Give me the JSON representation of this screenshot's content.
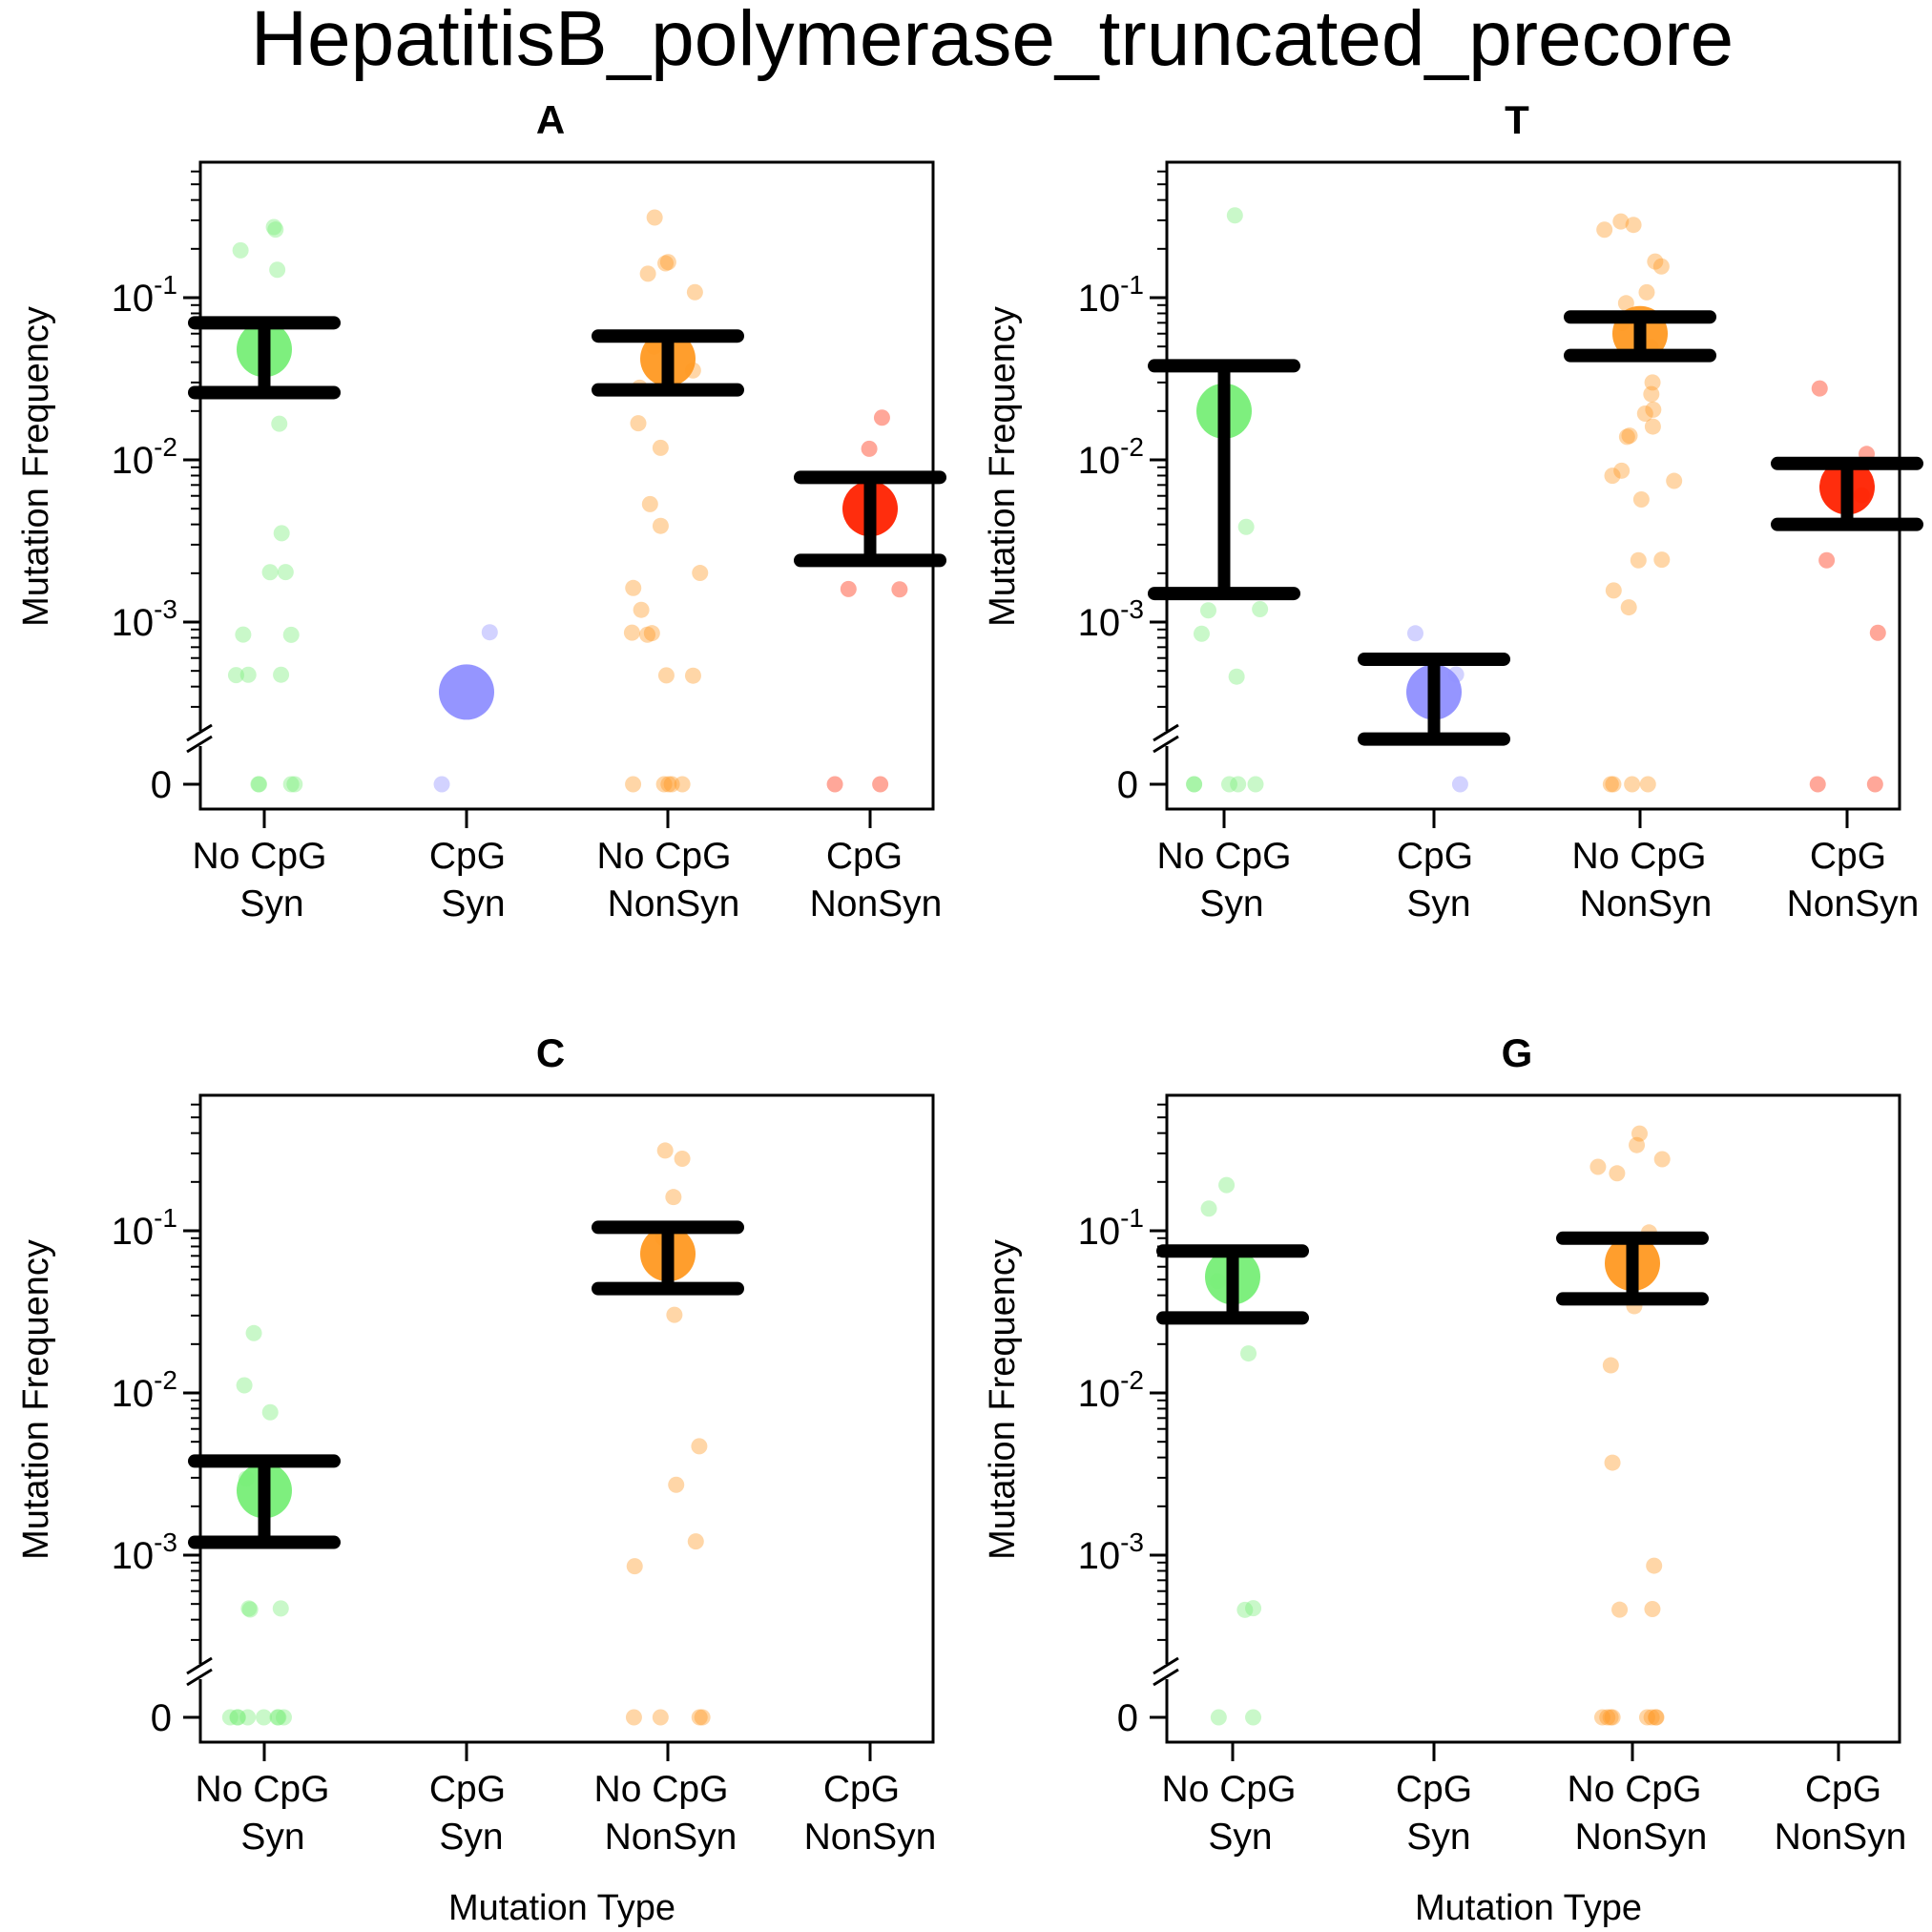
{
  "chart_data": {
    "type": "scatter",
    "title": "HepatitisB_polymerase_truncated_precore",
    "ylabel": "Mutation Frequency",
    "xlabel": "Mutation Type",
    "yscale": "log",
    "yticks": [
      {
        "value": 0.1,
        "label": "10",
        "exp": "-1"
      },
      {
        "value": 0.01,
        "label": "10",
        "exp": "-2"
      },
      {
        "value": 0.001,
        "label": "10",
        "exp": "-3"
      },
      {
        "value": 0,
        "label": "0",
        "exp": ""
      }
    ],
    "categories": [
      {
        "line1": "No CpG",
        "line2": "Syn",
        "color": "#77ee77"
      },
      {
        "line1": "CpG",
        "line2": "Syn",
        "color": "#8f8fff"
      },
      {
        "line1": "No CpG",
        "line2": "NonSyn",
        "color": "#ff9922"
      },
      {
        "line1": "CpG",
        "line2": "NonSyn",
        "color": "#ff2200"
      }
    ],
    "panels": [
      {
        "title": "A",
        "groups": [
          {
            "mean": 0.048,
            "lo": 0.026,
            "hi": 0.07,
            "points": [
              0.26,
              0.28,
              0.15,
              0.2,
              0.017,
              0.0035,
              0.002,
              0.002,
              0.00085,
              0.00085,
              0.00047,
              0.00047,
              0.00047,
              0,
              0,
              0,
              0
            ]
          },
          {
            "mean": 0.00037,
            "lo": null,
            "hi": null,
            "points": [
              0.00085,
              0
            ]
          },
          {
            "mean": 0.042,
            "lo": 0.027,
            "hi": 0.058,
            "points": [
              0.31,
              0.17,
              0.165,
              0.14,
              0.11,
              0.05,
              0.036,
              0.028,
              0.017,
              0.012,
              0.0053,
              0.0039,
              0.002,
              0.0016,
              0.0012,
              0.00085,
              0.00085,
              0.00085,
              0.00047,
              0.00047,
              0,
              0,
              0,
              0,
              0
            ]
          },
          {
            "mean": 0.005,
            "lo": 0.0024,
            "hi": 0.0078,
            "points": [
              0.018,
              0.012,
              0.0016,
              0.0016,
              0,
              0
            ]
          }
        ]
      },
      {
        "title": "T",
        "groups": [
          {
            "mean": 0.02,
            "lo": 0.0015,
            "hi": 0.038,
            "points": [
              0.32,
              0.0039,
              0.0012,
              0.0012,
              0.00085,
              0.00047,
              0,
              0,
              0,
              0,
              0
            ]
          },
          {
            "mean": 0.00037,
            "lo": 0.00019,
            "hi": 0.00059,
            "points": [
              0.00085,
              0.00047,
              0
            ]
          },
          {
            "mean": 0.06,
            "lo": 0.044,
            "hi": 0.076,
            "points": [
              0.3,
              0.28,
              0.26,
              0.17,
              0.16,
              0.11,
              0.09,
              0.07,
              0.05,
              0.03,
              0.026,
              0.02,
              0.019,
              0.016,
              0.014,
              0.014,
              0.0085,
              0.008,
              0.0075,
              0.0058,
              0.0024,
              0.0024,
              0.0016,
              0.0012,
              0,
              0,
              0,
              0
            ]
          },
          {
            "mean": 0.0068,
            "lo": 0.004,
            "hi": 0.0095,
            "points": [
              0.027,
              0.011,
              0.006,
              0.0024,
              0.00085,
              0,
              0
            ]
          }
        ]
      },
      {
        "title": "C",
        "groups": [
          {
            "mean": 0.0025,
            "lo": 0.0012,
            "hi": 0.0038,
            "points": [
              0.024,
              0.011,
              0.0078,
              0.003,
              0.00047,
              0.00047,
              0.00047,
              0,
              0,
              0,
              0,
              0,
              0,
              0,
              0
            ]
          },
          {
            "mean": null,
            "lo": null,
            "hi": null,
            "points": []
          },
          {
            "mean": 0.072,
            "lo": 0.044,
            "hi": 0.105,
            "points": [
              0.31,
              0.28,
              0.16,
              0.09,
              0.03,
              0.0048,
              0.0027,
              0.0012,
              0.00085,
              0,
              0,
              0,
              0
            ]
          },
          {
            "mean": null,
            "lo": null,
            "hi": null,
            "points": []
          }
        ]
      },
      {
        "title": "G",
        "groups": [
          {
            "mean": 0.052,
            "lo": 0.029,
            "hi": 0.075,
            "points": [
              0.19,
              0.14,
              0.05,
              0.018,
              0.00047,
              0.00047,
              0,
              0
            ]
          },
          {
            "mean": null,
            "lo": null,
            "hi": null,
            "points": []
          },
          {
            "mean": 0.063,
            "lo": 0.038,
            "hi": 0.09,
            "points": [
              0.4,
              0.33,
              0.28,
              0.25,
              0.23,
              0.1,
              0.035,
              0.0145,
              0.0038,
              0.00085,
              0.00047,
              0.00047,
              0,
              0,
              0,
              0,
              0,
              0,
              0,
              0
            ]
          },
          {
            "mean": null,
            "lo": null,
            "hi": null,
            "points": []
          }
        ]
      }
    ]
  }
}
